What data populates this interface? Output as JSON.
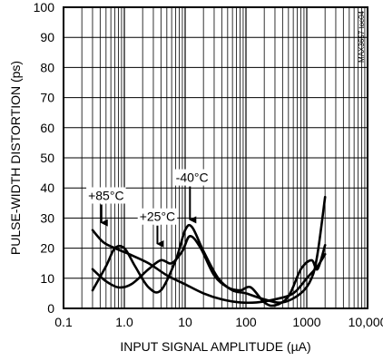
{
  "chart_data": {
    "type": "line",
    "title": "",
    "xlabel": "INPUT SIGNAL AMPLITUDE (µA)",
    "ylabel": "PULSE-WIDTH DISTORTION (ps)",
    "xscale": "log",
    "xlim": [
      0.1,
      10000
    ],
    "ylim": [
      0,
      100
    ],
    "grid": true,
    "figure_code": "MAX3657 toc04",
    "x_ticks": [
      "0.1",
      "1.0",
      "10",
      "100",
      "1000",
      "10,000"
    ],
    "y_ticks": [
      "0",
      "10",
      "20",
      "30",
      "40",
      "50",
      "60",
      "70",
      "80",
      "90",
      "100"
    ],
    "series": [
      {
        "name": "+85°C",
        "points": [
          [
            0.3,
            26
          ],
          [
            0.45,
            22
          ],
          [
            0.7,
            20
          ],
          [
            1.2,
            18
          ],
          [
            2.5,
            15
          ],
          [
            5,
            11
          ],
          [
            10,
            8
          ],
          [
            20,
            5
          ],
          [
            40,
            3
          ],
          [
            80,
            2
          ],
          [
            150,
            2
          ],
          [
            300,
            3
          ],
          [
            600,
            5
          ],
          [
            1000,
            10
          ],
          [
            1500,
            14
          ],
          [
            2000,
            18
          ]
        ]
      },
      {
        "name": "+25°C",
        "points": [
          [
            0.3,
            13
          ],
          [
            0.5,
            9
          ],
          [
            0.8,
            7
          ],
          [
            1.3,
            8
          ],
          [
            2.5,
            13
          ],
          [
            4,
            16
          ],
          [
            6,
            15
          ],
          [
            9,
            19
          ],
          [
            12,
            24
          ],
          [
            18,
            20
          ],
          [
            30,
            11
          ],
          [
            50,
            7
          ],
          [
            80,
            6
          ],
          [
            120,
            7
          ],
          [
            200,
            2
          ],
          [
            300,
            1
          ],
          [
            500,
            4
          ],
          [
            800,
            13
          ],
          [
            1200,
            16
          ],
          [
            1500,
            13
          ],
          [
            2000,
            21
          ]
        ]
      },
      {
        "name": "-40°C",
        "points": [
          [
            0.3,
            6
          ],
          [
            0.5,
            14
          ],
          [
            0.7,
            20
          ],
          [
            1.0,
            20
          ],
          [
            1.5,
            14
          ],
          [
            2.5,
            7
          ],
          [
            4,
            6
          ],
          [
            7,
            16
          ],
          [
            10,
            26
          ],
          [
            13,
            27
          ],
          [
            20,
            19
          ],
          [
            35,
            10
          ],
          [
            60,
            6
          ],
          [
            100,
            5
          ],
          [
            200,
            3
          ],
          [
            400,
            2
          ],
          [
            800,
            5
          ],
          [
            1200,
            10
          ],
          [
            1500,
            18
          ],
          [
            2000,
            37
          ]
        ]
      }
    ],
    "annotations": [
      {
        "text": "+85°C",
        "x": 0.5,
        "y": 36,
        "arrow_to": [
          0.42,
          26
        ]
      },
      {
        "text": "+25°C",
        "x": 3.5,
        "y": 29,
        "arrow_to": [
          3.5,
          19
        ]
      },
      {
        "text": "-40°C",
        "x": 13,
        "y": 42,
        "arrow_to": [
          12,
          27
        ]
      }
    ]
  }
}
